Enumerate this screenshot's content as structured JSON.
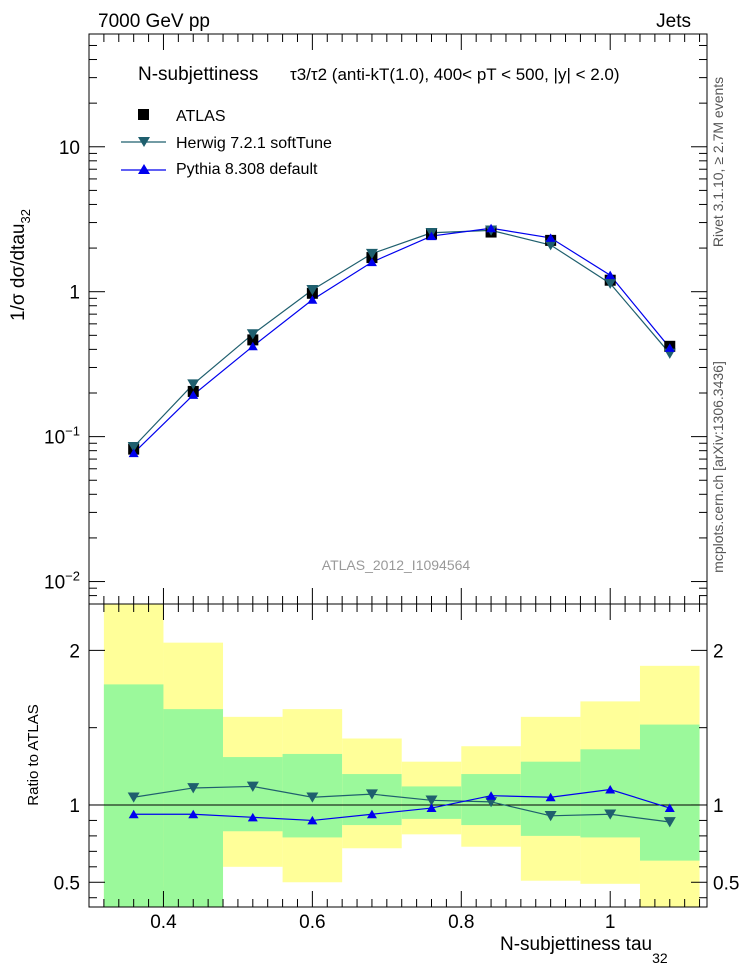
{
  "header": {
    "left": "7000 GeV pp",
    "right": "Jets"
  },
  "title": {
    "main": "N-subjettiness",
    "formula": "τ3/τ2 (anti-kT(1.0), 400< pT < 500, |y| < 2.0)"
  },
  "side_texts": {
    "rivet": "Rivet 3.1.10, ≥ 2.7M events",
    "mcplots": "mcplots.cern.ch [arXiv:1306.3436]"
  },
  "analysis_id": "ATLAS_2012_I1094564",
  "colors": {
    "atlas": "#000000",
    "herwig": "#1f5f6e",
    "pythia": "#0000ee",
    "band_green": "#9bf99b",
    "band_yellow": "#ffff99"
  },
  "chart_data": [
    {
      "type": "scatter",
      "role": "main",
      "yscale": "log",
      "ylabel": "1/σ dσ/dtau32",
      "ylabel_main": "1/σ dσ/dtau",
      "ylabel_sub": "32",
      "xlim": [
        0.3,
        1.13
      ],
      "ylim": [
        0.007,
        60
      ],
      "y_ticks": [
        {
          "value": 0.01,
          "label": "10",
          "exp": "−2"
        },
        {
          "value": 0.1,
          "label": "10",
          "exp": "−1"
        },
        {
          "value": 1,
          "label": "1",
          "exp": ""
        },
        {
          "value": 10,
          "label": "10",
          "exp": ""
        }
      ],
      "x": [
        0.36,
        0.44,
        0.52,
        0.6,
        0.68,
        0.76,
        0.84,
        0.92,
        1.0,
        1.08
      ],
      "bin_edges": [
        0.32,
        0.4,
        0.48,
        0.56,
        0.64,
        0.72,
        0.8,
        0.88,
        0.96,
        1.04,
        1.12
      ],
      "legend_position": "top-left",
      "series": [
        {
          "name": "ATLAS",
          "marker": "square",
          "values": [
            0.082,
            0.205,
            0.465,
            0.975,
            1.72,
            2.5,
            2.58,
            2.26,
            1.2,
            0.42
          ]
        },
        {
          "name": "Herwig 7.2.1 softTune",
          "marker": "triangle-down",
          "values": [
            0.085,
            0.23,
            0.51,
            1.03,
            1.83,
            2.55,
            2.65,
            2.1,
            1.14,
            0.375
          ]
        },
        {
          "name": "Pythia 8.308 default",
          "marker": "triangle-up",
          "values": [
            0.077,
            0.194,
            0.42,
            0.88,
            1.6,
            2.42,
            2.74,
            2.35,
            1.3,
            0.41
          ]
        }
      ]
    },
    {
      "type": "line",
      "role": "ratio",
      "ylabel": "Ratio to ATLAS",
      "xlabel": "N-subjettiness tau32",
      "xlabel_main": "N-subjettiness tau",
      "xlabel_sub": "32",
      "xlim": [
        0.3,
        1.13
      ],
      "ylim": [
        0.34,
        2.3
      ],
      "x_ticks": [
        {
          "value": 0.4,
          "label": "0.4"
        },
        {
          "value": 0.6,
          "label": "0.6"
        },
        {
          "value": 0.8,
          "label": "0.8"
        },
        {
          "value": 1.0,
          "label": "1"
        }
      ],
      "y_ticks": [
        {
          "value": 0.5,
          "label": "0.5"
        },
        {
          "value": 1,
          "label": "1"
        },
        {
          "value": 2,
          "label": "2"
        }
      ],
      "x": [
        0.36,
        0.44,
        0.52,
        0.6,
        0.68,
        0.76,
        0.84,
        0.92,
        1.0,
        1.08
      ],
      "band_green": {
        "low": [
          0.34,
          0.34,
          0.83,
          0.79,
          0.87,
          0.91,
          0.87,
          0.8,
          0.79,
          0.64
        ],
        "high": [
          1.78,
          1.62,
          1.31,
          1.33,
          1.2,
          1.12,
          1.2,
          1.28,
          1.36,
          1.52
        ]
      },
      "band_yellow": {
        "low": [
          0.34,
          0.47,
          0.6,
          0.5,
          0.72,
          0.81,
          0.73,
          0.51,
          0.49,
          0.34
        ],
        "high": [
          2.3,
          2.05,
          1.57,
          1.62,
          1.43,
          1.28,
          1.38,
          1.57,
          1.67,
          1.9
        ]
      },
      "series": [
        {
          "name": "Herwig 7.2.1 softTune",
          "marker": "triangle-down",
          "values": [
            1.05,
            1.11,
            1.12,
            1.05,
            1.07,
            1.03,
            1.02,
            0.93,
            0.94,
            0.89
          ]
        },
        {
          "name": "Pythia 8.308 default",
          "marker": "triangle-up",
          "values": [
            0.94,
            0.94,
            0.92,
            0.9,
            0.94,
            0.98,
            1.06,
            1.05,
            1.1,
            0.98
          ]
        }
      ]
    }
  ]
}
